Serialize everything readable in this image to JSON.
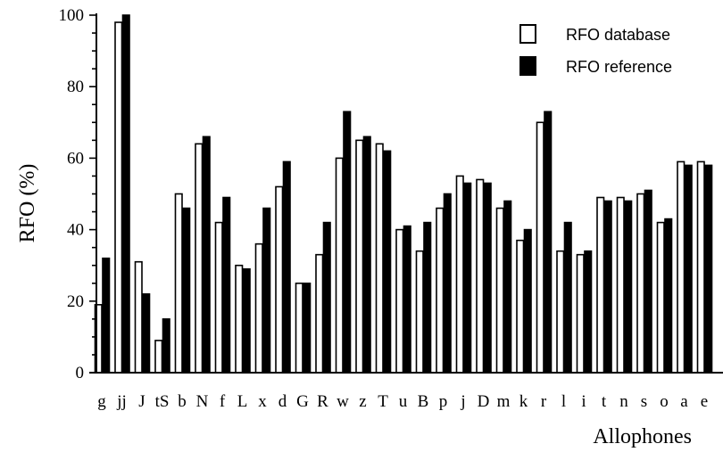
{
  "chart_data": {
    "type": "bar",
    "title": "",
    "xlabel": "Allophones",
    "ylabel": "RFO (%)",
    "ylim": [
      0,
      100
    ],
    "yticks": [
      0,
      20,
      40,
      60,
      80,
      100
    ],
    "categories": [
      "g",
      "jj",
      "J",
      "tS",
      "b",
      "N",
      "f",
      "L",
      "x",
      "d",
      "G",
      "R",
      "w",
      "z",
      "T",
      "u",
      "B",
      "p",
      "j",
      "D",
      "m",
      "k",
      "r",
      "l",
      "i",
      "t",
      "n",
      "s",
      "o",
      "a",
      "e"
    ],
    "series": [
      {
        "name": "RFO database",
        "fill": "#ffffff",
        "values": [
          19,
          98,
          31,
          9,
          50,
          64,
          42,
          30,
          36,
          52,
          25,
          33,
          60,
          65,
          64,
          40,
          34,
          46,
          55,
          54,
          46,
          37,
          70,
          34,
          33,
          49,
          49,
          50,
          42,
          59,
          59
        ]
      },
      {
        "name": "RFO reference",
        "fill": "#000000",
        "values": [
          32,
          100,
          22,
          15,
          46,
          66,
          49,
          29,
          46,
          59,
          25,
          42,
          73,
          66,
          62,
          41,
          42,
          50,
          53,
          53,
          48,
          40,
          73,
          42,
          34,
          48,
          48,
          51,
          43,
          58,
          58
        ]
      }
    ],
    "legend_position": "top-right",
    "grid": false
  }
}
